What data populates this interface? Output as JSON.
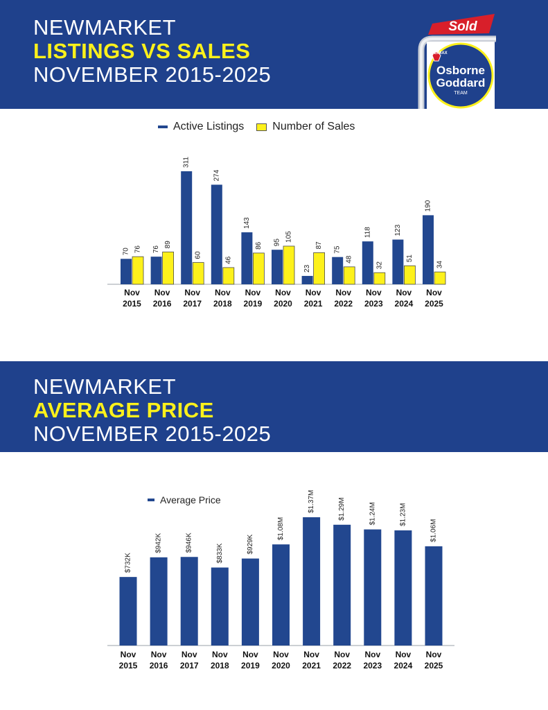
{
  "banner1": {
    "line1": "NEWMARKET",
    "line2": "LISTINGS VS SALES",
    "line3": "NOVEMBER 2015-2025"
  },
  "banner2": {
    "line1": "NEWMARKET",
    "line2": "AVERAGE PRICE",
    "line3": "NOVEMBER 2015-2025"
  },
  "logo": {
    "sign_text": "Sold",
    "brand_small": "RE/MAX",
    "name_line1": "Osborne",
    "name_line2": "Goddard",
    "team": "TEAM"
  },
  "colors": {
    "banner": "#1f418c",
    "highlight": "#fdf11b",
    "bar_blue": "#22478f",
    "bar_yellow": "#fdf11b",
    "sign_red": "#d81f2a"
  },
  "chart_data": [
    {
      "type": "bar",
      "title": "",
      "categories": [
        "Nov 2015",
        "Nov 2016",
        "Nov 2017",
        "Nov 2018",
        "Nov 2019",
        "Nov 2020",
        "Nov 2021",
        "Nov 2022",
        "Nov 2023",
        "Nov 2024",
        "Nov 2025"
      ],
      "category_lines": [
        [
          "Nov",
          "2015"
        ],
        [
          "Nov",
          "2016"
        ],
        [
          "Nov",
          "2017"
        ],
        [
          "Nov",
          "2018"
        ],
        [
          "Nov",
          "2019"
        ],
        [
          "Nov",
          "2020"
        ],
        [
          "Nov",
          "2021"
        ],
        [
          "Nov",
          "2022"
        ],
        [
          "Nov",
          "2023"
        ],
        [
          "Nov",
          "2024"
        ],
        [
          "Nov",
          "2025"
        ]
      ],
      "series": [
        {
          "name": "Active Listings",
          "color": "#22478f",
          "values": [
            70,
            76,
            311,
            274,
            143,
            95,
            23,
            75,
            118,
            123,
            190
          ],
          "labels": [
            "70",
            "76",
            "311",
            "274",
            "143",
            "95",
            "23",
            "75",
            "118",
            "123",
            "190"
          ]
        },
        {
          "name": "Number of Sales",
          "color": "#fdf11b",
          "values": [
            76,
            89,
            60,
            46,
            86,
            105,
            87,
            48,
            32,
            51,
            34
          ],
          "labels": [
            "76",
            "89",
            "60",
            "46",
            "86",
            "105",
            "87",
            "48",
            "32",
            "51",
            "34"
          ]
        }
      ],
      "ylim": [
        0,
        311
      ],
      "legend": "top-center",
      "grid": false
    },
    {
      "type": "bar",
      "title": "",
      "categories": [
        "Nov 2015",
        "Nov 2016",
        "Nov 2017",
        "Nov 2018",
        "Nov 2019",
        "Nov 2020",
        "Nov 2021",
        "Nov 2022",
        "Nov 2023",
        "Nov 2024",
        "Nov 2025"
      ],
      "category_lines": [
        [
          "Nov",
          "2015"
        ],
        [
          "Nov",
          "2016"
        ],
        [
          "Nov",
          "2017"
        ],
        [
          "Nov",
          "2018"
        ],
        [
          "Nov",
          "2019"
        ],
        [
          "Nov",
          "2020"
        ],
        [
          "Nov",
          "2021"
        ],
        [
          "Nov",
          "2022"
        ],
        [
          "Nov",
          "2023"
        ],
        [
          "Nov",
          "2024"
        ],
        [
          "Nov",
          "2025"
        ]
      ],
      "series": [
        {
          "name": "Average Price",
          "color": "#22478f",
          "values": [
            732000,
            942000,
            946000,
            833000,
            929000,
            1080000,
            1370000,
            1290000,
            1240000,
            1230000,
            1060000
          ],
          "labels": [
            "$732K",
            "$942K",
            "$946K",
            "$833K",
            "$929K",
            "$1.08M",
            "$1.37M",
            "$1.29M",
            "$1.24M",
            "$1.23M",
            "$1.06M"
          ]
        }
      ],
      "ylim": [
        0,
        1370000
      ],
      "legend": "top-left",
      "grid": false
    }
  ]
}
